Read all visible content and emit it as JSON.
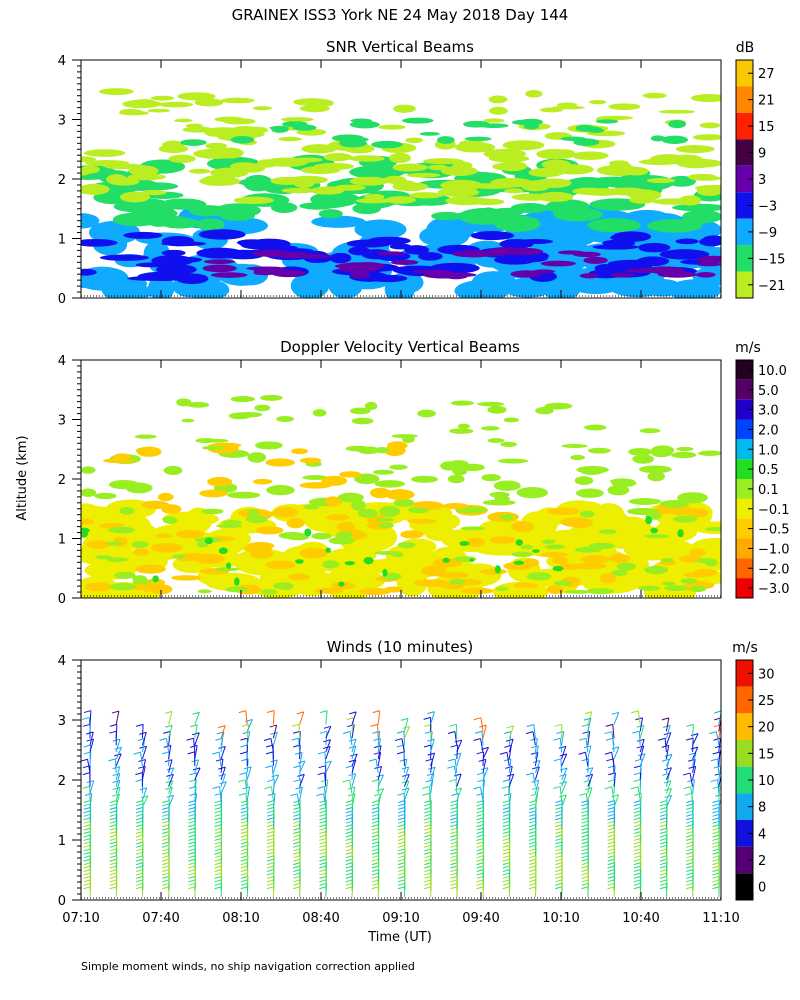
{
  "figure_title": "GRAINEX ISS3 York NE  24 May 2018 Day 144",
  "y_axis_label": "Altitude (km)",
  "x_axis_label": "Time (UT)",
  "footnote": "Simple moment winds, no ship navigation correction applied",
  "chart_data": [
    {
      "type": "heatmap",
      "title": "SNR Vertical Beams",
      "x_ticks": [
        "07:10",
        "07:40",
        "08:10",
        "08:40",
        "09:10",
        "09:40",
        "10:10",
        "10:40",
        "11:10"
      ],
      "y_ticks": [
        "0",
        "1",
        "2",
        "3",
        "4"
      ],
      "ylim": [
        0,
        4
      ],
      "xlabel": "Time (UT)",
      "ylabel": "Altitude (km)",
      "colorbar": {
        "unit": "dB",
        "labels": [
          "27",
          "21",
          "15",
          "9",
          "3",
          "−3",
          "−9",
          "−15",
          "−21"
        ],
        "colors": [
          "#f8c800",
          "#ff8800",
          "#ff2200",
          "#440044",
          "#6600aa",
          "#1010ee",
          "#10aaff",
          "#22dd66",
          "#bbee22"
        ]
      }
    },
    {
      "type": "heatmap",
      "title": "Doppler Velocity Vertical Beams",
      "x_ticks": [
        "07:10",
        "07:40",
        "08:10",
        "08:40",
        "09:10",
        "09:40",
        "10:10",
        "10:40",
        "11:10"
      ],
      "y_ticks": [
        "0",
        "1",
        "2",
        "3",
        "4"
      ],
      "ylim": [
        0,
        4
      ],
      "xlabel": "Time (UT)",
      "ylabel": "Altitude (km)",
      "colorbar": {
        "unit": "m/s",
        "labels": [
          "10.0",
          "5.0",
          "3.0",
          "2.0",
          "1.0",
          "0.5",
          "0.1",
          "−0.1",
          "−0.5",
          "−1.0",
          "−2.0",
          "−3.0"
        ],
        "colors": [
          "#220022",
          "#550066",
          "#2200cc",
          "#0044ff",
          "#00bbee",
          "#22dd22",
          "#99ee22",
          "#eeee00",
          "#ffcc00",
          "#ffaa00",
          "#ff6600",
          "#ee0000"
        ]
      }
    },
    {
      "type": "wind_barbs",
      "title": "Winds (10 minutes)",
      "x_ticks": [
        "07:10",
        "07:40",
        "08:10",
        "08:40",
        "09:10",
        "09:40",
        "10:10",
        "10:40",
        "11:10"
      ],
      "y_ticks": [
        "0",
        "1",
        "2",
        "3",
        "4"
      ],
      "ylim": [
        0,
        4
      ],
      "xlabel": "Time (UT)",
      "ylabel": "Altitude (km)",
      "colorbar": {
        "unit": "m/s",
        "labels": [
          "30",
          "25",
          "20",
          "15",
          "10",
          "8",
          "4",
          "2",
          "0"
        ],
        "colors": [
          "#ee1100",
          "#ff6600",
          "#ffbb00",
          "#99dd22",
          "#22dd77",
          "#11aaee",
          "#1111dd",
          "#550077",
          "#000000"
        ]
      }
    }
  ]
}
